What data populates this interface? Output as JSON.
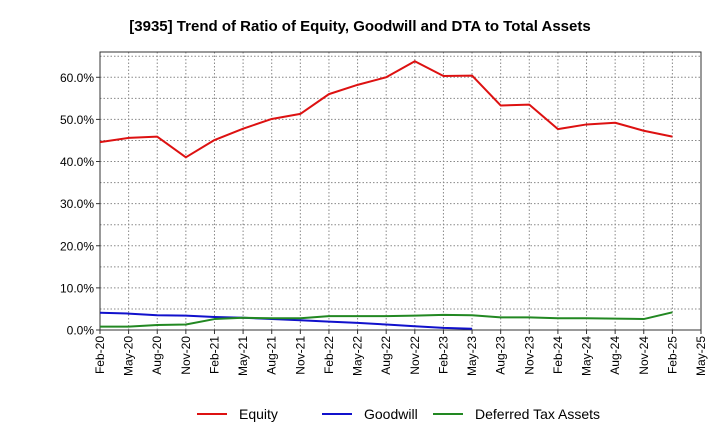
{
  "chart_data": {
    "type": "line",
    "title": "[3935]  Trend of Ratio of Equity, Goodwill and DTA to Total Assets",
    "xlabel": "",
    "ylabel": "",
    "ylim": [
      0,
      66
    ],
    "yticks": [
      0,
      10,
      20,
      30,
      40,
      50,
      60
    ],
    "ytick_labels": [
      "0.0%",
      "10.0%",
      "20.0%",
      "30.0%",
      "40.0%",
      "50.0%",
      "60.0%"
    ],
    "grid": true,
    "x": [
      "Feb-20",
      "May-20",
      "Aug-20",
      "Nov-20",
      "Feb-21",
      "May-21",
      "Aug-21",
      "Nov-21",
      "Feb-22",
      "May-22",
      "Aug-22",
      "Nov-22",
      "Feb-23",
      "May-23",
      "Aug-23",
      "Nov-23",
      "Feb-24",
      "May-24",
      "Aug-24",
      "Nov-24",
      "Feb-25",
      "May-25"
    ],
    "xtick_labels": [
      "Feb-20",
      "May-20",
      "Aug-20",
      "Nov-20",
      "Feb-21",
      "May-21",
      "Aug-21",
      "Nov-21",
      "Feb-22",
      "May-22",
      "Aug-22",
      "Nov-22",
      "Feb-23",
      "May-23",
      "Aug-23",
      "Nov-23",
      "Feb-24",
      "May-24",
      "Aug-24",
      "Nov-24",
      "Feb-25",
      "May-25"
    ],
    "series": [
      {
        "name": "Equity",
        "color": "#dd1111",
        "values": [
          44.6,
          45.6,
          45.9,
          41.0,
          45.1,
          47.8,
          50.1,
          51.3,
          56.0,
          58.2,
          60.0,
          63.8,
          60.3,
          60.4,
          53.3,
          53.5,
          47.7,
          48.8,
          49.2,
          47.3,
          45.9,
          null
        ]
      },
      {
        "name": "Goodwill",
        "color": "#1111cc",
        "values": [
          4.1,
          3.9,
          3.5,
          3.4,
          3.1,
          2.9,
          2.6,
          2.3,
          2.0,
          1.7,
          1.3,
          0.9,
          0.5,
          0.3,
          null,
          null,
          null,
          null,
          null,
          null,
          null,
          null
        ]
      },
      {
        "name": "Deferred Tax Assets",
        "color": "#228822",
        "values": [
          0.8,
          0.8,
          1.2,
          1.3,
          2.6,
          2.9,
          2.8,
          2.8,
          3.3,
          3.3,
          3.3,
          3.4,
          3.6,
          3.5,
          3.0,
          3.0,
          2.8,
          2.8,
          2.7,
          2.6,
          4.2,
          null
        ]
      }
    ],
    "legend_position": "bottom"
  }
}
